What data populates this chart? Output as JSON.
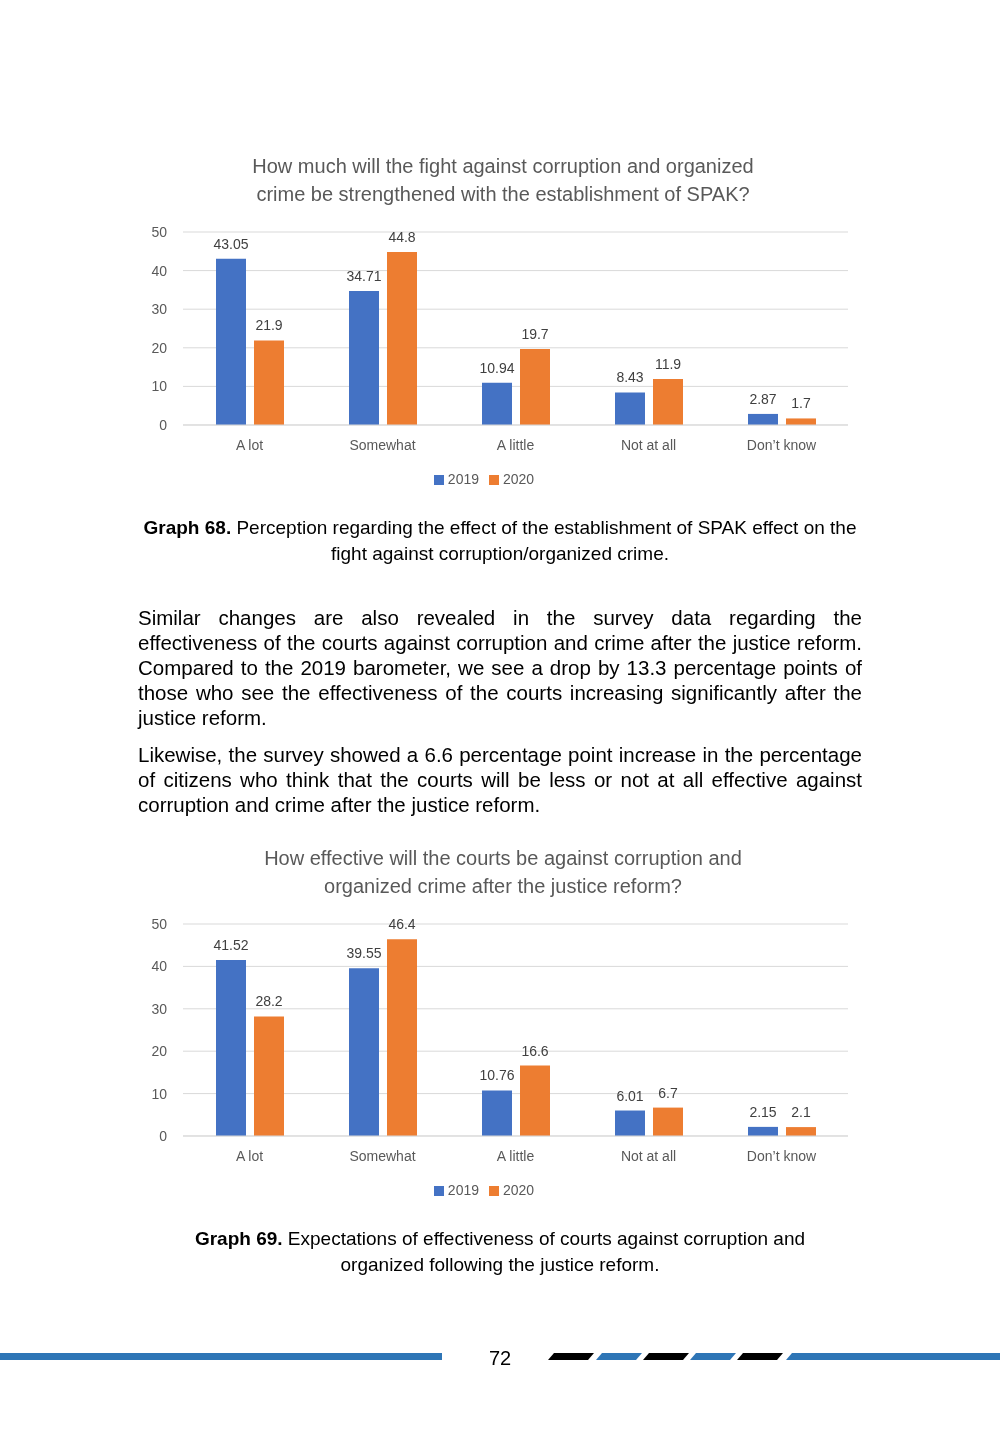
{
  "chart_data": [
    {
      "type": "bar",
      "title": "How much will the fight against corruption and organized crime be strengthened with the establishment of SPAK?",
      "categories": [
        "A lot",
        "Somewhat",
        "A little",
        "Not at all",
        "Don’t know"
      ],
      "series": [
        {
          "name": "2019",
          "color": "#4472c4",
          "values": [
            43.05,
            34.71,
            10.94,
            8.43,
            2.87
          ]
        },
        {
          "name": "2020",
          "color": "#ed7d31",
          "values": [
            21.9,
            44.8,
            19.7,
            11.9,
            1.7
          ]
        }
      ],
      "ylim": [
        0,
        50
      ],
      "yticks": [
        0,
        10,
        20,
        30,
        40,
        50
      ],
      "grid": "y",
      "legend": "bottom",
      "data_labels": true,
      "annotations": [
        "Graph 68. Perception regarding the effect of the establishment of SPAK effect on the fight against corruption/organized crime.",
        "Similar changes are also revealed in the survey data regarding the effectiveness of the courts against corruption and crime after the justice reform. Compared to the 2019 barometer, we see a drop by 13.3 percentage points of those who see the effectiveness of the courts increasing significantly after the justice reform.",
        "Likewise, the survey showed a 6.6 percentage point increase in the percentage of citizens who think that the courts will be less or not at all effective against corruption and crime after the justice reform."
      ]
    },
    {
      "type": "bar",
      "title": "How effective will the courts be against corruption and organized crime after the justice reform?",
      "categories": [
        "A lot",
        "Somewhat",
        "A little",
        "Not at all",
        "Don’t know"
      ],
      "series": [
        {
          "name": "2019",
          "color": "#4472c4",
          "values": [
            41.52,
            39.55,
            10.76,
            6.01,
            2.15
          ]
        },
        {
          "name": "2020",
          "color": "#ed7d31",
          "values": [
            28.2,
            46.4,
            16.6,
            6.7,
            2.1
          ]
        }
      ],
      "ylim": [
        0,
        50
      ],
      "yticks": [
        0,
        10,
        20,
        30,
        40,
        50
      ],
      "grid": "y",
      "legend": "bottom",
      "data_labels": true,
      "annotations": [
        "Graph 69. Expectations of effectiveness of courts against corruption and organized following the justice reform.",
        "72"
      ]
    }
  ]
}
